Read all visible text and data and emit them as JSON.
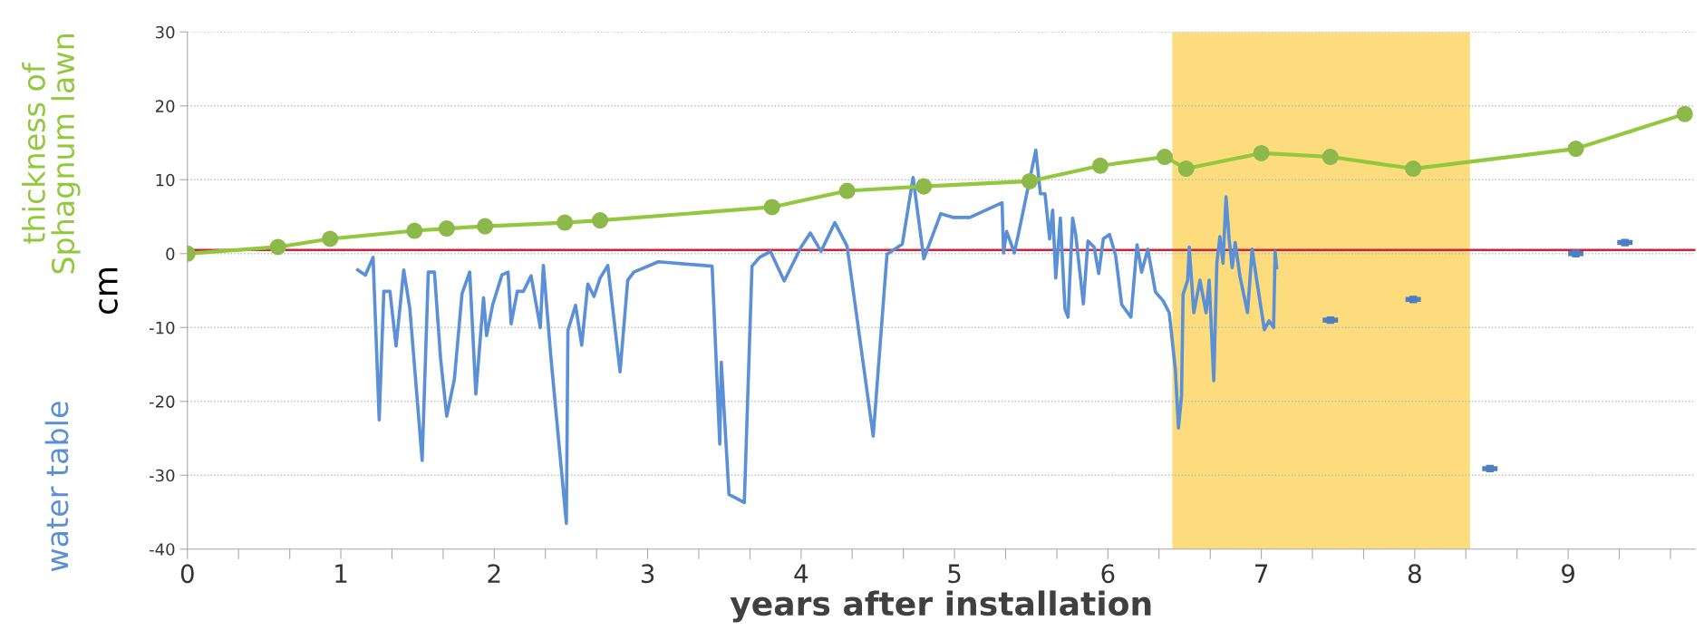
{
  "chart_data": {
    "type": "line",
    "xlabel": "years after installation",
    "ylabel": "cm",
    "annotations": [
      "thickness of\nSphagnum lawn",
      "water table"
    ],
    "xlim": [
      0,
      9.83
    ],
    "ylim": [
      -40,
      30
    ],
    "yticks": [
      -40,
      -30,
      -20,
      -10,
      0,
      10,
      20,
      30
    ],
    "xticks": [
      0,
      {
        "value": 0.333,
        "label": null
      },
      {
        "value": 0.667,
        "label": null
      },
      1,
      {
        "value": 1.333,
        "label": null
      },
      {
        "value": 1.667,
        "label": null
      },
      2,
      {
        "value": 2.333,
        "label": null
      },
      {
        "value": 2.667,
        "label": null
      },
      3,
      {
        "value": 3.333,
        "label": null
      },
      {
        "value": 3.667,
        "label": null
      },
      4,
      {
        "value": 4.333,
        "label": null
      },
      {
        "value": 4.667,
        "label": null
      },
      5,
      {
        "value": 5.333,
        "label": null
      },
      {
        "value": 5.667,
        "label": null
      },
      6,
      {
        "value": 6.333,
        "label": null
      },
      {
        "value": 6.667,
        "label": null
      },
      7,
      {
        "value": 7.333,
        "label": null
      },
      {
        "value": 7.667,
        "label": null
      },
      8,
      {
        "value": 8.333,
        "label": null
      },
      {
        "value": 8.667,
        "label": null
      },
      9,
      {
        "value": 9.333,
        "label": null
      },
      {
        "value": 9.667,
        "label": null
      }
    ],
    "grid": "y",
    "ref_lines": [
      {
        "axis": "y",
        "value": 0.5,
        "color": "#d0223a"
      }
    ],
    "bands": [
      {
        "axis": "x",
        "from": 6.42,
        "to": 8.36,
        "color": "#fcdc7c"
      }
    ],
    "series": [
      {
        "type": "line",
        "color": "#92c83e",
        "marker": "circle",
        "x": [
          0,
          0.59,
          0.93,
          1.48,
          1.69,
          1.94,
          2.46,
          2.69,
          3.81,
          4.3,
          4.8,
          5.49,
          5.95,
          6.37,
          6.51,
          7.0,
          7.45,
          7.99,
          9.05,
          9.76
        ],
        "values": [
          0,
          0.9,
          2.0,
          3.1,
          3.4,
          3.7,
          4.2,
          4.5,
          6.3,
          8.5,
          9.1,
          9.8,
          11.9,
          13.1,
          11.5,
          13.6,
          13.1,
          11.5,
          14.2,
          18.9
        ]
      },
      {
        "color": "#5b8fd6",
        "marker": "none",
        "x": [
          1.11,
          1.16,
          1.21,
          1.25,
          1.28,
          1.32,
          1.36,
          1.41,
          1.45,
          1.53,
          1.57,
          1.61,
          1.65,
          1.69,
          1.74,
          1.79,
          1.84,
          1.88,
          1.93,
          1.95,
          1.99,
          2.05,
          2.09,
          2.11,
          2.15,
          2.19,
          2.24,
          2.3,
          2.32,
          2.37,
          2.47,
          2.48,
          2.53,
          2.57,
          2.61,
          2.65,
          2.69,
          2.74,
          2.82,
          2.87,
          2.91,
          3.07,
          3.42,
          3.47,
          3.48,
          3.53,
          3.63,
          3.68,
          3.73,
          3.8,
          3.89,
          4.0,
          4.06,
          4.13,
          4.22,
          4.3,
          4.47,
          4.56,
          4.66,
          4.73,
          4.8,
          4.91,
          4.99,
          5.1,
          5.31,
          5.32,
          5.34,
          5.39,
          5.42,
          5.53,
          5.56,
          5.59,
          5.62,
          5.64,
          5.66,
          5.69,
          5.72,
          5.74,
          5.77,
          5.79,
          5.84,
          5.87,
          5.91,
          5.94,
          5.97,
          6.01,
          6.05,
          6.09,
          6.15,
          6.19,
          6.22,
          6.26,
          6.31,
          6.36,
          6.4,
          6.42,
          6.44,
          6.46,
          6.48,
          6.49,
          6.52,
          6.53,
          6.56,
          6.6,
          6.64,
          6.66,
          6.69,
          6.71,
          6.73,
          6.75,
          6.77,
          6.79,
          6.81,
          6.83,
          6.86,
          6.91,
          6.94,
          6.97,
          7.02,
          7.05,
          7.08,
          7.09,
          7.1
        ],
        "values": [
          -2.2,
          -2.9,
          -0.5,
          -22.5,
          -5.1,
          -5.1,
          -12.5,
          -2.2,
          -7.5,
          -28.0,
          -2.5,
          -2.5,
          -14.2,
          -22.0,
          -17.0,
          -5.4,
          -2.5,
          -19.0,
          -6.0,
          -11.1,
          -6.9,
          -2.9,
          -2.5,
          -9.5,
          -5.1,
          -5.1,
          -3.0,
          -10.0,
          -1.6,
          -14.2,
          -36.5,
          -10.4,
          -7.0,
          -12.4,
          -4.1,
          -5.8,
          -3.3,
          -1.6,
          -16.0,
          -3.6,
          -2.5,
          -1.1,
          -1.7,
          -25.8,
          -14.7,
          -32.6,
          -33.7,
          -1.7,
          -0.5,
          0.3,
          -3.7,
          0.9,
          2.8,
          0.3,
          4.2,
          1.0,
          -24.7,
          -0.1,
          1.3,
          10.3,
          -0.7,
          5.4,
          4.9,
          4.9,
          6.9,
          0.1,
          3.0,
          0.1,
          3.0,
          14.0,
          8.1,
          8.1,
          2.0,
          5.9,
          -3.3,
          4.8,
          -7.5,
          -8.6,
          4.8,
          2.6,
          -6.8,
          1.7,
          0.9,
          -2.7,
          2.0,
          2.6,
          -0.2,
          -6.9,
          -8.6,
          1.2,
          -2.5,
          0.6,
          -5.2,
          -6.4,
          -8.0,
          -11.9,
          -15.8,
          -23.6,
          -19.2,
          -5.5,
          -3.6,
          0.9,
          -8.0,
          -3.6,
          -8.0,
          -3.6,
          -17.2,
          -1.3,
          2.3,
          -1.3,
          7.7,
          2.0,
          -1.9,
          1.5,
          -3.0,
          -8.0,
          0.6,
          -3.6,
          -10.3,
          -9.1,
          -10.0,
          0.3,
          -1.9
        ]
      },
      {
        "type": "scatter",
        "color": "#4f7fc0",
        "marker": "square",
        "x": [
          7.45,
          7.99,
          8.49,
          9.05,
          9.37
        ],
        "xerrors": [
          0.05,
          0.05,
          0.05,
          0.05,
          0.05
        ],
        "values": [
          -9.0,
          -6.2,
          -29.1,
          0.0,
          1.5
        ]
      }
    ]
  }
}
